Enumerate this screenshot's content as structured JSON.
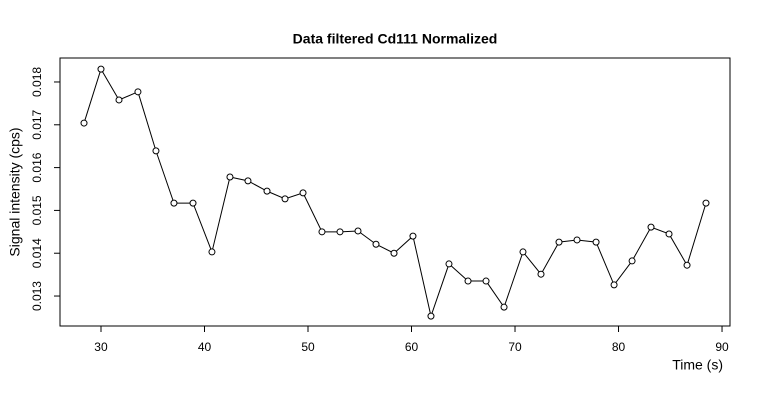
{
  "chart_data": {
    "type": "line",
    "title": "Data filtered Cd111 Normalized",
    "x_label": "Time (s)",
    "y_label": "Signal intensity (cps)",
    "x": [
      28.36,
      30,
      31.74,
      33.57,
      35.31,
      37.05,
      38.89,
      40.72,
      42.46,
      44.2,
      46.04,
      47.78,
      49.52,
      51.35,
      53.09,
      54.83,
      56.57,
      58.31,
      60.14,
      61.88,
      63.62,
      65.46,
      67.2,
      68.94,
      70.77,
      72.51,
      74.25,
      75.99,
      77.83,
      79.57,
      81.31,
      83.14,
      84.88,
      86.62,
      88.45
    ],
    "values": [
      0.01704,
      0.0183,
      0.01758,
      0.01777,
      0.01639,
      0.01517,
      0.01517,
      0.01403,
      0.01578,
      0.01569,
      0.01545,
      0.01527,
      0.01541,
      0.0145,
      0.0145,
      0.01452,
      0.01421,
      0.014,
      0.0144,
      0.01253,
      0.01375,
      0.01335,
      0.01335,
      0.01274,
      0.01403,
      0.01351,
      0.01426,
      0.01431,
      0.01426,
      0.01326,
      0.01382,
      0.01461,
      0.01445,
      0.01372,
      0.01517
    ],
    "color": "#000000",
    "xlim": [
      26.04,
      90.77
    ],
    "ylim": [
      0.0123,
      0.01856
    ],
    "xticks": [
      30,
      40,
      50,
      60,
      70,
      80,
      90
    ],
    "yticks": [
      0.013,
      0.014,
      0.015,
      0.016,
      0.017,
      0.018
    ]
  }
}
